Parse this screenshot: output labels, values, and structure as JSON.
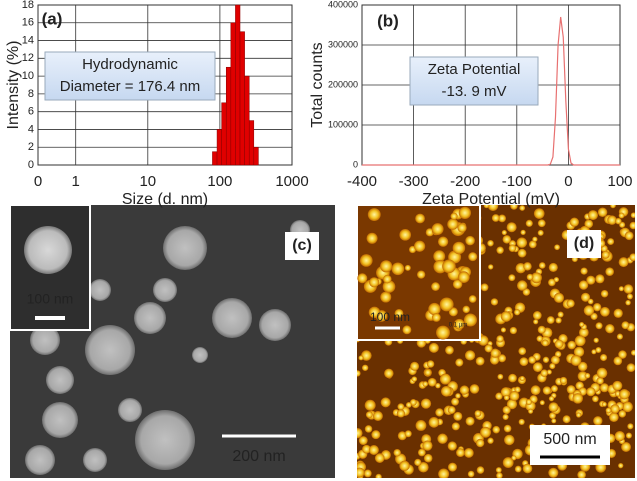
{
  "chart_data": [
    {
      "type": "histogram",
      "panel_label": "(a)",
      "x_label": "Size (d. nm)",
      "y_label": "Intensity (%)",
      "annotations": [
        "Hydrodynamic",
        "Diameter = 176.4 nm"
      ],
      "bins": [
        78.8,
        91.3,
        105.7,
        122.4,
        141.8,
        164.2,
        190.1,
        220.2,
        255,
        295.3,
        342
      ],
      "values": [
        1.5,
        4,
        7,
        11,
        16,
        18,
        15,
        10,
        5,
        2
      ],
      "color": "#e00000",
      "log_x": true,
      "xlim": [
        0.3,
        1000
      ],
      "xticks": [
        {
          "value": 0.3,
          "label": "0"
        },
        1,
        10,
        100,
        1000
      ],
      "ylim": [
        0,
        18
      ],
      "yticks": [
        0,
        2,
        4,
        6,
        8,
        10,
        12,
        14,
        16,
        18
      ],
      "grid": true
    },
    {
      "type": "line",
      "panel_label": "(b)",
      "x_label": "Zeta Potential (mV)",
      "y_label": "Total counts",
      "annotations": [
        "Zeta Potential",
        "-13. 9 mV"
      ],
      "series": [
        {
          "color": "#e87070",
          "x": [
            -400,
            -40,
            -35,
            -30,
            -25,
            -20,
            -15,
            -10,
            -5,
            0,
            5,
            10,
            100
          ],
          "values": [
            0,
            0,
            2000,
            20000,
            120000,
            300000,
            370000,
            320000,
            160000,
            40000,
            5000,
            0,
            0
          ]
        }
      ],
      "xlim": [
        -400,
        100
      ],
      "xticks": [
        -400,
        -300,
        -200,
        -100,
        0,
        100
      ],
      "ylim": [
        0,
        400000
      ],
      "yticks": [
        0,
        100000,
        200000,
        300000,
        400000
      ],
      "grid": true
    }
  ],
  "images": [
    {
      "label": "(c)",
      "scale_bar": "200 nm",
      "inset_scale_bar": "100 nm"
    },
    {
      "label": "(d)",
      "scale_bar": "500 nm",
      "inset_scale_bar": "100 nm",
      "inset_note": "0.1 µm"
    }
  ]
}
